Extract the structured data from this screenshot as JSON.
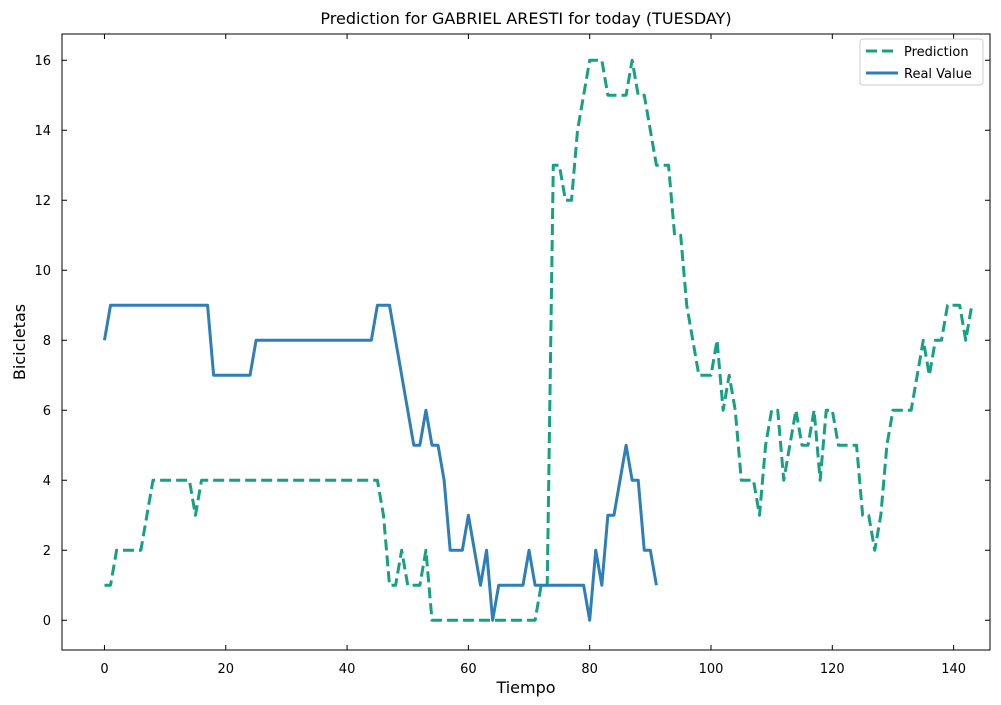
{
  "chart_data": {
    "type": "line",
    "title": "Prediction for GABRIEL ARESTI for today (TUESDAY)",
    "xlabel": "Tiempo",
    "ylabel": "Bicicletas",
    "xlim": [
      -7,
      146
    ],
    "ylim": [
      -0.85,
      16.75
    ],
    "xticks": [
      0,
      20,
      40,
      60,
      80,
      100,
      120,
      140
    ],
    "yticks": [
      0,
      2,
      4,
      6,
      8,
      10,
      12,
      14,
      16
    ],
    "grid": false,
    "legend_position": "top-right",
    "series": [
      {
        "name": "Prediction",
        "color": "#16a085",
        "style": "dashed",
        "x": [
          0,
          1,
          2,
          3,
          4,
          5,
          6,
          7,
          8,
          9,
          10,
          11,
          12,
          13,
          14,
          15,
          16,
          17,
          18,
          19,
          20,
          21,
          22,
          23,
          24,
          25,
          26,
          27,
          28,
          29,
          30,
          31,
          32,
          33,
          34,
          35,
          36,
          37,
          38,
          39,
          40,
          41,
          42,
          43,
          44,
          45,
          46,
          47,
          48,
          49,
          50,
          51,
          52,
          53,
          54,
          55,
          56,
          57,
          58,
          59,
          60,
          61,
          62,
          63,
          64,
          65,
          66,
          67,
          68,
          69,
          70,
          71,
          72,
          73,
          74,
          75,
          76,
          77,
          78,
          79,
          80,
          81,
          82,
          83,
          84,
          85,
          86,
          87,
          88,
          89,
          90,
          91,
          92,
          93,
          94,
          95,
          96,
          97,
          98,
          99,
          100,
          101,
          102,
          103,
          104,
          105,
          106,
          107,
          108,
          109,
          110,
          111,
          112,
          113,
          114,
          115,
          116,
          117,
          118,
          119,
          120,
          121,
          122,
          123,
          124,
          125,
          126,
          127,
          128,
          129,
          130,
          131,
          132,
          133,
          134,
          135,
          136,
          137,
          138,
          139,
          140,
          141,
          142,
          143
        ],
        "values": [
          1,
          1,
          2,
          2,
          2,
          2,
          2,
          3,
          4,
          4,
          4,
          4,
          4,
          4,
          4,
          3,
          4,
          4,
          4,
          4,
          4,
          4,
          4,
          4,
          4,
          4,
          4,
          4,
          4,
          4,
          4,
          4,
          4,
          4,
          4,
          4,
          4,
          4,
          4,
          4,
          4,
          4,
          4,
          4,
          4,
          4,
          3,
          1,
          1,
          2,
          1,
          1,
          1,
          2,
          0,
          0,
          0,
          0,
          0,
          0,
          0,
          0,
          0,
          0,
          0,
          0,
          0,
          0,
          0,
          0,
          0,
          0,
          1,
          1,
          13,
          13,
          12,
          12,
          14,
          15,
          16,
          16,
          16,
          15,
          15,
          15,
          15,
          16,
          15,
          15,
          14,
          13,
          13,
          13,
          11,
          11,
          9,
          8,
          7,
          7,
          7,
          8,
          6,
          7,
          6,
          4,
          4,
          4,
          3,
          5,
          6,
          6,
          4,
          5,
          6,
          5,
          5,
          6,
          4,
          6,
          6,
          5,
          5,
          5,
          5,
          3,
          3,
          2,
          3,
          5,
          6,
          6,
          6,
          6,
          7,
          8,
          7,
          8,
          8,
          9,
          9,
          9,
          8,
          9
        ]
      },
      {
        "name": "Real Value",
        "color": "#2e7fb8",
        "style": "solid",
        "x": [
          0,
          1,
          2,
          3,
          4,
          5,
          6,
          7,
          8,
          9,
          10,
          11,
          12,
          13,
          14,
          15,
          16,
          17,
          18,
          19,
          20,
          21,
          22,
          23,
          24,
          25,
          26,
          27,
          28,
          29,
          30,
          31,
          32,
          33,
          34,
          35,
          36,
          37,
          38,
          39,
          40,
          41,
          42,
          43,
          44,
          45,
          46,
          47,
          48,
          49,
          50,
          51,
          52,
          53,
          54,
          55,
          56,
          57,
          58,
          59,
          60,
          61,
          62,
          63,
          64,
          65,
          66,
          67,
          68,
          69,
          70,
          71,
          72,
          73,
          74,
          75,
          76,
          77,
          78,
          79,
          80,
          81,
          82,
          83,
          84,
          85,
          86,
          87,
          88,
          89,
          90,
          91
        ],
        "values": [
          8,
          9,
          9,
          9,
          9,
          9,
          9,
          9,
          9,
          9,
          9,
          9,
          9,
          9,
          9,
          9,
          9,
          9,
          7,
          7,
          7,
          7,
          7,
          7,
          7,
          8,
          8,
          8,
          8,
          8,
          8,
          8,
          8,
          8,
          8,
          8,
          8,
          8,
          8,
          8,
          8,
          8,
          8,
          8,
          8,
          9,
          9,
          9,
          8,
          7,
          6,
          5,
          5,
          6,
          5,
          5,
          4,
          2,
          2,
          2,
          3,
          2,
          1,
          2,
          0,
          1,
          1,
          1,
          1,
          1,
          2,
          1,
          1,
          1,
          1,
          1,
          1,
          1,
          1,
          1,
          0,
          2,
          1,
          3,
          3,
          4,
          5,
          4,
          4,
          2,
          2,
          1
        ]
      }
    ]
  }
}
